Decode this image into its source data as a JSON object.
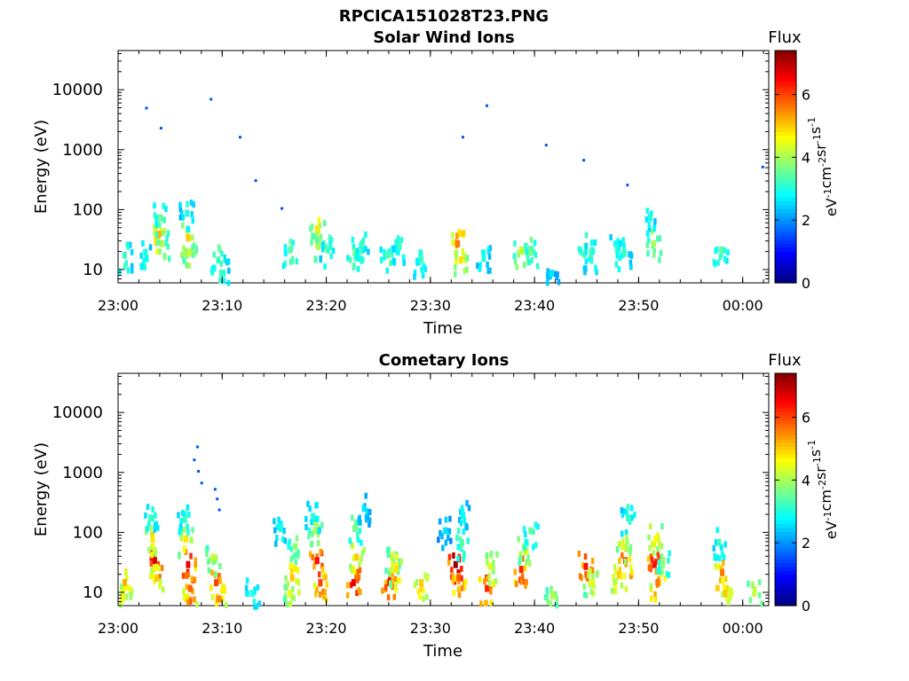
{
  "figure": {
    "title": "RPCICA151028T23.PNG"
  },
  "colors": {
    "flux_scale": [
      "#00007f",
      "#0000ff",
      "#007fff",
      "#00ffff",
      "#7fff7f",
      "#ffff00",
      "#ff7f00",
      "#ff0000",
      "#7f0000"
    ]
  },
  "chart_data": [
    {
      "type": "heatmap",
      "title": "Solar Wind Ions",
      "xlabel": "Time",
      "ylabel": "Energy (eV)",
      "y_scale": "log",
      "x_ticks": [
        "23:00",
        "23:10",
        "23:20",
        "23:30",
        "23:40",
        "23:50",
        "00:00"
      ],
      "y_ticks": [
        "10",
        "100",
        "1000",
        "10000"
      ],
      "colorbar": {
        "label": "Flux",
        "unit_label": "eV-1cm-2sr-1s-1",
        "ticks": [
          "0",
          "2",
          "4",
          "6"
        ],
        "range": [
          0,
          7.4
        ]
      },
      "bursts": [
        {
          "t": 0.5,
          "e": 18,
          "f": 3.2
        },
        {
          "t": 2.5,
          "e": 20,
          "f": 3.0
        },
        {
          "t": 3.8,
          "e": 40,
          "f": 5.2
        },
        {
          "t": 3.9,
          "e": 75,
          "f": 3.5
        },
        {
          "t": 4.1,
          "e": 28,
          "f": 4.0
        },
        {
          "t": 6.6,
          "e": 35,
          "f": 5.0
        },
        {
          "t": 6.7,
          "e": 20,
          "f": 4.2
        },
        {
          "t": 6.5,
          "e": 90,
          "f": 3.0
        },
        {
          "t": 9.5,
          "e": 15,
          "f": 3.6
        },
        {
          "t": 9.8,
          "e": 9,
          "f": 3.2
        },
        {
          "t": 16.4,
          "e": 22,
          "f": 3.4
        },
        {
          "t": 19.0,
          "e": 50,
          "f": 4.8
        },
        {
          "t": 19.1,
          "e": 25,
          "f": 4.0
        },
        {
          "t": 20.0,
          "e": 22,
          "f": 3.3
        },
        {
          "t": 22.6,
          "e": 20,
          "f": 3.6
        },
        {
          "t": 23.3,
          "e": 28,
          "f": 3.2
        },
        {
          "t": 25.8,
          "e": 18,
          "f": 3.4
        },
        {
          "t": 26.9,
          "e": 25,
          "f": 3.2
        },
        {
          "t": 29.0,
          "e": 15,
          "f": 3.2
        },
        {
          "t": 32.5,
          "e": 28,
          "f": 5.6
        },
        {
          "t": 32.8,
          "e": 15,
          "f": 4.8
        },
        {
          "t": 35.0,
          "e": 16,
          "f": 3.0
        },
        {
          "t": 38.6,
          "e": 22,
          "f": 4.2
        },
        {
          "t": 39.5,
          "e": 20,
          "f": 3.6
        },
        {
          "t": 41.5,
          "e": 9,
          "f": 2.6
        },
        {
          "t": 44.8,
          "e": 25,
          "f": 3.6
        },
        {
          "t": 45.3,
          "e": 18,
          "f": 3.2
        },
        {
          "t": 47.8,
          "e": 22,
          "f": 3.2
        },
        {
          "t": 48.5,
          "e": 20,
          "f": 3.2
        },
        {
          "t": 51.3,
          "e": 28,
          "f": 4.0
        },
        {
          "t": 51.0,
          "e": 75,
          "f": 3.0
        },
        {
          "t": 57.8,
          "e": 22,
          "f": 3.5
        }
      ],
      "dots": [
        {
          "t": 2.6,
          "e": 5200
        },
        {
          "t": 4.0,
          "e": 2400
        },
        {
          "t": 8.8,
          "e": 7300
        },
        {
          "t": 11.6,
          "e": 1700
        },
        {
          "t": 13.1,
          "e": 320
        },
        {
          "t": 15.6,
          "e": 110
        },
        {
          "t": 33.0,
          "e": 1700
        },
        {
          "t": 35.3,
          "e": 5700
        },
        {
          "t": 41.0,
          "e": 1250
        },
        {
          "t": 44.6,
          "e": 700
        },
        {
          "t": 48.8,
          "e": 270
        },
        {
          "t": 61.8,
          "e": 540
        }
      ]
    },
    {
      "type": "heatmap",
      "title": "Cometary Ions",
      "xlabel": "Time",
      "ylabel": "Energy (eV)",
      "y_scale": "log",
      "x_ticks": [
        "23:00",
        "23:10",
        "23:20",
        "23:30",
        "23:40",
        "23:50",
        "00:00"
      ],
      "y_ticks": [
        "10",
        "100",
        "1000",
        "10000"
      ],
      "colorbar": {
        "label": "Flux",
        "unit_label": "eV-1cm-2sr-1s-1",
        "ticks": [
          "0",
          "2",
          "4",
          "6"
        ],
        "range": [
          0,
          7.4
        ]
      },
      "bursts": [
        {
          "t": 0.5,
          "e": 15,
          "f": 5.2
        },
        {
          "t": 0.3,
          "e": 8,
          "f": 4.5
        },
        {
          "t": 3.4,
          "e": 35,
          "f": 6.8
        },
        {
          "t": 3.2,
          "e": 80,
          "f": 4.8
        },
        {
          "t": 3.6,
          "e": 18,
          "f": 5.0
        },
        {
          "t": 3.0,
          "e": 180,
          "f": 3.2
        },
        {
          "t": 6.6,
          "e": 30,
          "f": 6.6
        },
        {
          "t": 6.4,
          "e": 80,
          "f": 4.8
        },
        {
          "t": 6.8,
          "e": 12,
          "f": 5.8
        },
        {
          "t": 6.3,
          "e": 170,
          "f": 3.2
        },
        {
          "t": 9.3,
          "e": 15,
          "f": 6.0
        },
        {
          "t": 9.6,
          "e": 8,
          "f": 5.5
        },
        {
          "t": 9.0,
          "e": 40,
          "f": 4.2
        },
        {
          "t": 12.8,
          "e": 10,
          "f": 3.0
        },
        {
          "t": 15.5,
          "e": 120,
          "f": 3.0
        },
        {
          "t": 16.6,
          "e": 18,
          "f": 5.0
        },
        {
          "t": 16.9,
          "e": 60,
          "f": 3.8
        },
        {
          "t": 16.4,
          "e": 10,
          "f": 4.4
        },
        {
          "t": 19.0,
          "e": 35,
          "f": 6.4
        },
        {
          "t": 19.3,
          "e": 15,
          "f": 6.0
        },
        {
          "t": 18.8,
          "e": 110,
          "f": 4.0
        },
        {
          "t": 18.6,
          "e": 190,
          "f": 3.0
        },
        {
          "t": 22.5,
          "e": 15,
          "f": 6.6
        },
        {
          "t": 22.8,
          "e": 40,
          "f": 5.0
        },
        {
          "t": 22.6,
          "e": 120,
          "f": 3.6
        },
        {
          "t": 23.5,
          "e": 260,
          "f": 2.6
        },
        {
          "t": 25.9,
          "e": 15,
          "f": 6.2
        },
        {
          "t": 26.2,
          "e": 40,
          "f": 4.2
        },
        {
          "t": 26.6,
          "e": 25,
          "f": 4.8
        },
        {
          "t": 29.0,
          "e": 15,
          "f": 5.0
        },
        {
          "t": 31.3,
          "e": 110,
          "f": 2.6
        },
        {
          "t": 32.3,
          "e": 30,
          "f": 7.2
        },
        {
          "t": 32.6,
          "e": 18,
          "f": 5.8
        },
        {
          "t": 32.9,
          "e": 70,
          "f": 3.4
        },
        {
          "t": 33.0,
          "e": 200,
          "f": 2.8
        },
        {
          "t": 35.3,
          "e": 12,
          "f": 6.2
        },
        {
          "t": 35.6,
          "e": 28,
          "f": 4.4
        },
        {
          "t": 38.6,
          "e": 25,
          "f": 6.2
        },
        {
          "t": 39.0,
          "e": 50,
          "f": 4.4
        },
        {
          "t": 39.5,
          "e": 110,
          "f": 3.5
        },
        {
          "t": 41.6,
          "e": 9,
          "f": 4.0
        },
        {
          "t": 44.8,
          "e": 28,
          "f": 6.4
        },
        {
          "t": 45.3,
          "e": 15,
          "f": 4.4
        },
        {
          "t": 48.0,
          "e": 20,
          "f": 5.0
        },
        {
          "t": 48.6,
          "e": 35,
          "f": 6.0
        },
        {
          "t": 48.9,
          "e": 180,
          "f": 3.2
        },
        {
          "t": 48.4,
          "e": 60,
          "f": 4.4
        },
        {
          "t": 51.4,
          "e": 30,
          "f": 6.4
        },
        {
          "t": 51.5,
          "e": 80,
          "f": 4.6
        },
        {
          "t": 51.7,
          "e": 15,
          "f": 5.6
        },
        {
          "t": 52.2,
          "e": 35,
          "f": 3.8
        },
        {
          "t": 57.9,
          "e": 22,
          "f": 5.6
        },
        {
          "t": 58.2,
          "e": 10,
          "f": 5.0
        },
        {
          "t": 57.6,
          "e": 70,
          "f": 3.2
        },
        {
          "t": 61.0,
          "e": 10,
          "f": 4.2
        }
      ],
      "dots": [
        {
          "t": 7.5,
          "e": 2800
        },
        {
          "t": 7.2,
          "e": 1700
        },
        {
          "t": 7.6,
          "e": 1100
        },
        {
          "t": 7.9,
          "e": 700
        },
        {
          "t": 9.2,
          "e": 550
        },
        {
          "t": 9.4,
          "e": 380
        },
        {
          "t": 9.6,
          "e": 250
        }
      ]
    }
  ]
}
